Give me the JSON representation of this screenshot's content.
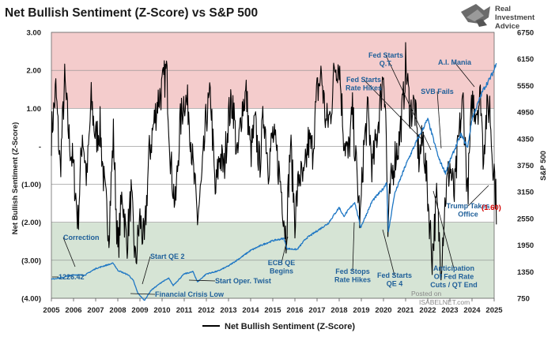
{
  "chart_data": {
    "type": "line",
    "title": "Net Bullish Sentiment (Z-Score) vs S&P 500",
    "ylabel_left": "Net Bullish Sentiment (Z-Score)",
    "ylabel_right": "S&P 500",
    "x_ticks": [
      "2005",
      "2006",
      "2007",
      "2008",
      "2009",
      "2010",
      "2011",
      "2012",
      "2013",
      "2014",
      "2015",
      "2016",
      "2017",
      "2018",
      "2019",
      "2020",
      "2021",
      "2022",
      "2023",
      "2024",
      "2025"
    ],
    "xlim": [
      2005,
      2025
    ],
    "y_left_ticks": [
      {
        "v": 3,
        "label": "3.00"
      },
      {
        "v": 2,
        "label": "2.00"
      },
      {
        "v": 1,
        "label": "1.00"
      },
      {
        "v": 0,
        "label": "-"
      },
      {
        "v": -1,
        "label": "(1.00)"
      },
      {
        "v": -2,
        "label": "(2.00)"
      },
      {
        "v": -3,
        "label": "(3.00)"
      },
      {
        "v": -4,
        "label": "(4.00)"
      }
    ],
    "ylim_left": [
      -4,
      3
    ],
    "y_right_ticks": [
      "750",
      "1350",
      "1950",
      "2550",
      "3150",
      "3750",
      "4350",
      "4950",
      "5550",
      "6150",
      "6750"
    ],
    "ylim_right": [
      750,
      6750
    ],
    "bands": [
      {
        "name": "overbought-zone",
        "from": 1,
        "to": 3,
        "color": "#f4cccc"
      },
      {
        "name": "oversold-zone",
        "from": -4,
        "to": -2,
        "color": "#d6e4d5"
      }
    ],
    "series": [
      {
        "name": "Net Bullish Sentiment (Z-Score)",
        "axis": "left",
        "color": "#000000",
        "anchors": [
          [
            2005.0,
            0.3
          ],
          [
            2005.2,
            1.5
          ],
          [
            2005.4,
            -0.6
          ],
          [
            2005.6,
            1.7
          ],
          [
            2005.8,
            0.2
          ],
          [
            2006.0,
            -0.6
          ],
          [
            2006.2,
            -2.0
          ],
          [
            2006.4,
            0.4
          ],
          [
            2006.6,
            -0.9
          ],
          [
            2006.8,
            1.2
          ],
          [
            2007.0,
            0.2
          ],
          [
            2007.2,
            0.5
          ],
          [
            2007.4,
            -1.2
          ],
          [
            2007.6,
            -2.2
          ],
          [
            2007.8,
            0.3
          ],
          [
            2008.0,
            -2.8
          ],
          [
            2008.2,
            -1.2
          ],
          [
            2008.4,
            -2.6
          ],
          [
            2008.6,
            -1.3
          ],
          [
            2008.8,
            -3.1
          ],
          [
            2009.0,
            -1.9
          ],
          [
            2009.2,
            -2.6
          ],
          [
            2009.4,
            -0.3
          ],
          [
            2009.6,
            0.5
          ],
          [
            2009.8,
            1.2
          ],
          [
            2010.0,
            1.5
          ],
          [
            2010.2,
            2.0
          ],
          [
            2010.4,
            -0.5
          ],
          [
            2010.6,
            -1.6
          ],
          [
            2010.8,
            0.5
          ],
          [
            2011.0,
            1.3
          ],
          [
            2011.2,
            1.0
          ],
          [
            2011.4,
            -0.6
          ],
          [
            2011.6,
            -1.9
          ],
          [
            2011.8,
            -0.9
          ],
          [
            2012.0,
            0.8
          ],
          [
            2012.2,
            1.3
          ],
          [
            2012.4,
            -1.3
          ],
          [
            2012.6,
            -0.2
          ],
          [
            2012.8,
            -0.6
          ],
          [
            2013.0,
            0.8
          ],
          [
            2013.2,
            1.2
          ],
          [
            2013.4,
            -0.4
          ],
          [
            2013.6,
            1.0
          ],
          [
            2013.8,
            1.4
          ],
          [
            2014.0,
            -0.2
          ],
          [
            2014.2,
            0.6
          ],
          [
            2014.4,
            -0.5
          ],
          [
            2014.6,
            0.9
          ],
          [
            2014.8,
            -0.5
          ],
          [
            2015.0,
            0.3
          ],
          [
            2015.2,
            -0.3
          ],
          [
            2015.4,
            -1.2
          ],
          [
            2015.6,
            -2.4
          ],
          [
            2015.8,
            0.1
          ],
          [
            2016.0,
            -1.9
          ],
          [
            2016.2,
            -0.7
          ],
          [
            2016.4,
            -1.0
          ],
          [
            2016.6,
            0.1
          ],
          [
            2016.8,
            -0.1
          ],
          [
            2017.0,
            1.4
          ],
          [
            2017.2,
            1.9
          ],
          [
            2017.4,
            0.6
          ],
          [
            2017.6,
            0.8
          ],
          [
            2017.8,
            2.1
          ],
          [
            2018.0,
            2.2
          ],
          [
            2018.2,
            0.3
          ],
          [
            2018.4,
            -0.3
          ],
          [
            2018.6,
            0.9
          ],
          [
            2018.8,
            -0.8
          ],
          [
            2018.95,
            -2.0
          ],
          [
            2019.1,
            -0.1
          ],
          [
            2019.3,
            0.9
          ],
          [
            2019.5,
            -0.6
          ],
          [
            2019.7,
            0.3
          ],
          [
            2019.9,
            1.4
          ],
          [
            2020.0,
            2.0
          ],
          [
            2020.1,
            1.0
          ],
          [
            2020.2,
            -2.3
          ],
          [
            2020.3,
            -1.2
          ],
          [
            2020.5,
            -0.3
          ],
          [
            2020.7,
            0.1
          ],
          [
            2020.9,
            1.2
          ],
          [
            2021.0,
            2.2
          ],
          [
            2021.2,
            0.9
          ],
          [
            2021.4,
            1.1
          ],
          [
            2021.6,
            -0.3
          ],
          [
            2021.8,
            0.2
          ],
          [
            2022.0,
            -1.3
          ],
          [
            2022.2,
            -2.9
          ],
          [
            2022.4,
            -1.4
          ],
          [
            2022.6,
            -3.1
          ],
          [
            2022.8,
            -1.3
          ],
          [
            2023.0,
            -0.5
          ],
          [
            2023.2,
            -1.3
          ],
          [
            2023.4,
            0.2
          ],
          [
            2023.6,
            1.2
          ],
          [
            2023.8,
            -1.3
          ],
          [
            2024.0,
            1.2
          ],
          [
            2024.2,
            1.0
          ],
          [
            2024.4,
            1.3
          ],
          [
            2024.5,
            -0.2
          ],
          [
            2024.65,
            0.8
          ],
          [
            2024.8,
            1.1
          ],
          [
            2024.9,
            -0.1
          ],
          [
            2025.0,
            -0.6
          ],
          [
            2025.1,
            -1.6
          ]
        ]
      },
      {
        "name": "S&P 500",
        "axis": "right",
        "color": "#1f77c4",
        "anchors": [
          [
            2005.0,
            1180
          ],
          [
            2005.5,
            1220
          ],
          [
            2006.0,
            1280
          ],
          [
            2006.5,
            1270
          ],
          [
            2007.0,
            1420
          ],
          [
            2007.5,
            1500
          ],
          [
            2007.8,
            1540
          ],
          [
            2008.0,
            1380
          ],
          [
            2008.5,
            1270
          ],
          [
            2008.7,
            1150
          ],
          [
            2008.9,
            870
          ],
          [
            2009.2,
            700
          ],
          [
            2009.5,
            930
          ],
          [
            2010.0,
            1120
          ],
          [
            2010.3,
            1200
          ],
          [
            2010.5,
            1040
          ],
          [
            2011.0,
            1300
          ],
          [
            2011.4,
            1350
          ],
          [
            2011.6,
            1120
          ],
          [
            2012.0,
            1300
          ],
          [
            2012.5,
            1360
          ],
          [
            2013.0,
            1480
          ],
          [
            2013.5,
            1650
          ],
          [
            2014.0,
            1830
          ],
          [
            2014.5,
            1950
          ],
          [
            2015.0,
            2050
          ],
          [
            2015.5,
            2100
          ],
          [
            2015.65,
            1870
          ],
          [
            2016.1,
            1850
          ],
          [
            2016.5,
            2100
          ],
          [
            2017.0,
            2270
          ],
          [
            2017.5,
            2440
          ],
          [
            2018.0,
            2800
          ],
          [
            2018.2,
            2600
          ],
          [
            2018.7,
            2920
          ],
          [
            2018.97,
            2350
          ],
          [
            2019.5,
            2950
          ],
          [
            2020.0,
            3230
          ],
          [
            2020.15,
            3380
          ],
          [
            2020.22,
            2240
          ],
          [
            2020.5,
            3100
          ],
          [
            2021.0,
            3750
          ],
          [
            2021.5,
            4300
          ],
          [
            2022.0,
            4790
          ],
          [
            2022.5,
            3900
          ],
          [
            2022.8,
            3580
          ],
          [
            2023.0,
            3850
          ],
          [
            2023.5,
            4450
          ],
          [
            2023.8,
            4150
          ],
          [
            2024.0,
            4800
          ],
          [
            2024.5,
            5450
          ],
          [
            2024.8,
            5700
          ],
          [
            2025.0,
            5900
          ],
          [
            2025.1,
            6100
          ]
        ]
      }
    ],
    "last_value_label": "(1.60)",
    "annotations": [
      {
        "text": "Correction",
        "x": 2006.0,
        "y": 1700
      },
      {
        "text": "1226.42",
        "x": 2005.5,
        "y": 1226
      },
      {
        "text": "Start QE 2",
        "x": 2010.3,
        "y": 1240
      },
      {
        "text": "Financial Crisis Low",
        "x": 2009.2,
        "y": 700
      },
      {
        "text": "Start Oper. Twist",
        "x": 2011.7,
        "y": 1160
      },
      {
        "text": "ECB QE Begins",
        "x": 2015.5,
        "y": 1930
      },
      {
        "text": "Fed Stops Rate Hikes",
        "x": 2018.9,
        "y": 2400
      },
      {
        "text": "Fed Starts QE 4",
        "x": 2020.2,
        "y": 2300
      },
      {
        "text": "Fed Starts Q.T.",
        "x": 2017.8,
        "y": 2800
      },
      {
        "text": "Fed Starts Rate Hikes",
        "x": 2022.0,
        "y": 4700
      },
      {
        "text": "A.I. Mania",
        "x": 2023.2,
        "y": 4200
      },
      {
        "text": "SVB Fails",
        "x": 2023.2,
        "y": 3950
      },
      {
        "text": "Trump Takes Office",
        "x": 2025.0,
        "y": 5900
      },
      {
        "text": "Anticipation Of Fed Rate Cuts / QT End",
        "x": 2023.8,
        "y": 4150
      }
    ],
    "legend": "Net Bullish Sentiment (Z-Score)"
  },
  "branding": {
    "logo_line1": "Real",
    "logo_line2": "Investment",
    "logo_line3": "Advice",
    "watermark1": "Posted on",
    "watermark2": "ISABELNET.com"
  }
}
